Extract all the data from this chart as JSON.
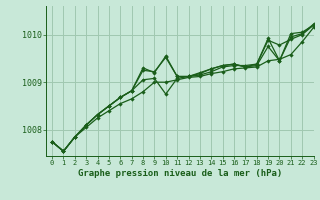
{
  "xlabel": "Graphe pression niveau de la mer (hPa)",
  "bg_color": "#c8e8d8",
  "grid_color": "#a0c8b0",
  "line_color": "#1a5e1a",
  "xlim": [
    -0.5,
    23
  ],
  "ylim": [
    1007.45,
    1010.6
  ],
  "yticks": [
    1008,
    1009,
    1010
  ],
  "xticks": [
    0,
    1,
    2,
    3,
    4,
    5,
    6,
    7,
    8,
    9,
    10,
    11,
    12,
    13,
    14,
    15,
    16,
    17,
    18,
    19,
    20,
    21,
    22,
    23
  ],
  "series": [
    [
      1007.75,
      1007.55,
      1007.85,
      1008.05,
      1008.25,
      1008.4,
      1008.55,
      1008.65,
      1008.8,
      1009.0,
      1009.0,
      1009.05,
      1009.1,
      1009.12,
      1009.18,
      1009.22,
      1009.28,
      1009.3,
      1009.32,
      1009.45,
      1009.48,
      1009.58,
      1009.85,
      1010.15
    ],
    [
      1007.75,
      1007.55,
      1007.85,
      1008.1,
      1008.32,
      1008.5,
      1008.68,
      1008.82,
      1009.05,
      1009.08,
      1008.75,
      1009.08,
      1009.12,
      1009.15,
      1009.22,
      1009.32,
      1009.35,
      1009.35,
      1009.38,
      1009.88,
      1009.78,
      1009.9,
      1010.0,
      1010.2
    ],
    [
      1007.75,
      1007.55,
      1007.85,
      1008.1,
      1008.32,
      1008.5,
      1008.68,
      1008.82,
      1009.3,
      1009.2,
      1009.55,
      1009.12,
      1009.12,
      1009.18,
      1009.28,
      1009.35,
      1009.38,
      1009.32,
      1009.38,
      1009.92,
      1009.45,
      1010.02,
      1010.05,
      1010.2
    ],
    [
      1007.75,
      1007.55,
      1007.85,
      1008.1,
      1008.32,
      1008.5,
      1008.68,
      1008.82,
      1009.25,
      1009.22,
      1009.52,
      1009.12,
      1009.12,
      1009.2,
      1009.28,
      1009.35,
      1009.38,
      1009.32,
      1009.35,
      1009.75,
      1009.45,
      1009.95,
      1010.02,
      1010.22
    ]
  ]
}
